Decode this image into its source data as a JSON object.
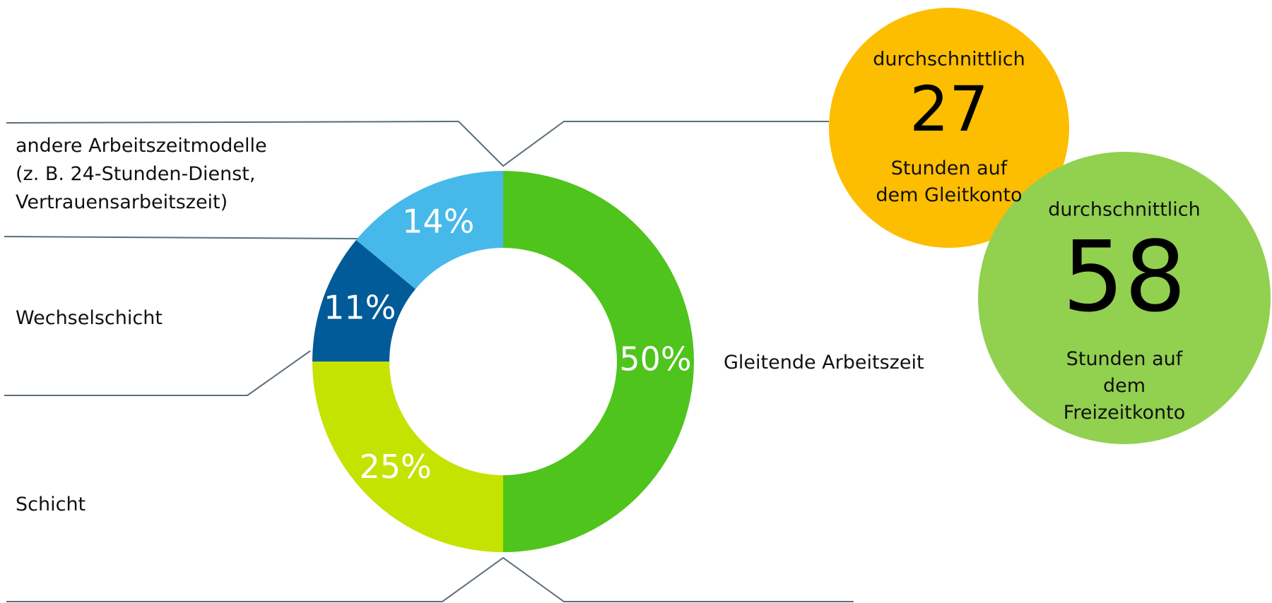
{
  "chart_data": {
    "type": "donut",
    "categories": [
      "Gleitende Arbeitszeit",
      "Schicht",
      "Wechselschicht",
      "andere Arbeitszeitmodelle\n(z. B. 24-Stunden-Dienst,\nVertrauensarbeitszeit)"
    ],
    "values": [
      50,
      25,
      11,
      14
    ],
    "value_labels": [
      "50%",
      "25%",
      "11%",
      "14%"
    ],
    "colors": [
      "#4fc41c",
      "#c4e300",
      "#005b98",
      "#46b9ea"
    ],
    "callouts": [
      {
        "top": "durchschnittlich",
        "value": 27,
        "bottom": "Stunden auf\ndem Gleitkonto",
        "color": "#fdbd00"
      },
      {
        "top": "durchschnittlich",
        "value": 58,
        "bottom": "Stunden auf dem\nFreizeitkonto",
        "color": "#92d050"
      }
    ]
  }
}
